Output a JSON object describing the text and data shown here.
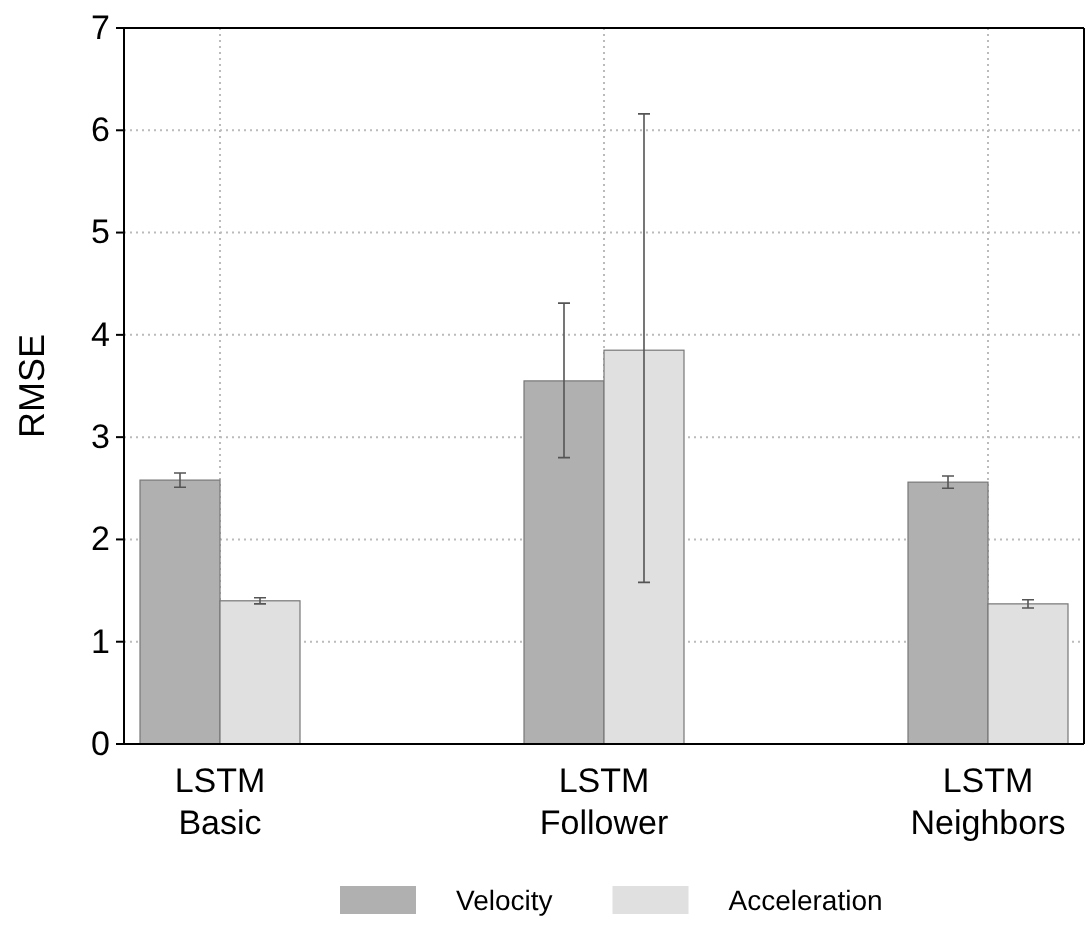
{
  "chart_data": {
    "type": "bar",
    "ylabel": "RMSE",
    "categories": [
      "LSTM Basic",
      "LSTM Follower",
      "LSTM Neighbors"
    ],
    "series": [
      {
        "name": "Velocity",
        "color": "#b0b0b0",
        "values": [
          2.58,
          3.55,
          2.56
        ],
        "errors": [
          0.07,
          [
            2.8,
            4.31
          ],
          0.06
        ]
      },
      {
        "name": "Acceleration",
        "color": "#e0e0e0",
        "values": [
          1.4,
          3.85,
          1.37
        ],
        "errors": [
          0.03,
          [
            1.58,
            6.16
          ],
          0.04
        ]
      }
    ],
    "ylim": [
      0,
      7
    ],
    "yticks": [
      0,
      1,
      2,
      3,
      4,
      5,
      6,
      7
    ],
    "grid": true,
    "legend": "bottom"
  }
}
